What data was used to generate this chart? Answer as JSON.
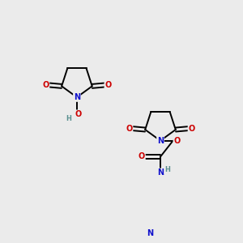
{
  "bg_color": "#ebebeb",
  "fig_size": [
    3.0,
    3.0
  ],
  "dpi": 100,
  "atom_colors": {
    "C": "#000000",
    "N": "#1010cc",
    "O": "#cc0000",
    "H": "#5a9090"
  },
  "bond_color": "#000000",
  "bond_width": 1.4,
  "font_size_atoms": 7.0,
  "font_size_small": 6.0
}
